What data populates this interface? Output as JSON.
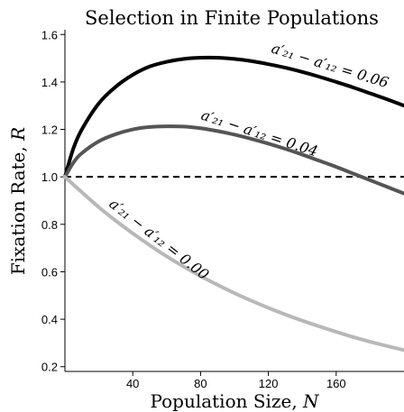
{
  "chart_data": {
    "type": "line",
    "title": "Selection in Finite Populations",
    "xlabel": "Population Size, N",
    "ylabel": "Fixation Rate, R",
    "xlim": [
      0,
      200
    ],
    "ylim": [
      0.18,
      1.62
    ],
    "xticks": [
      40,
      80,
      120,
      160
    ],
    "yticks": [
      0.2,
      0.4,
      0.6,
      0.8,
      1.0,
      1.2,
      1.4,
      1.6
    ],
    "ytick_labels": [
      "0.2",
      "0.4",
      "0.6",
      "0.8",
      "1.0",
      "1.2",
      "1.4",
      "1.6"
    ],
    "grid": false,
    "reference_line": {
      "y": 1.0,
      "style": "dashed"
    },
    "series": [
      {
        "annotation": "a′₂₁ − a′₁₂ = 0.06",
        "color": "#000000",
        "x": [
          0,
          5,
          10,
          20,
          30,
          40,
          50,
          60,
          70,
          80,
          90,
          100,
          110,
          120,
          130,
          140,
          150,
          160,
          170,
          180,
          190,
          200
        ],
        "y": [
          1.0,
          1.12,
          1.2,
          1.31,
          1.38,
          1.43,
          1.465,
          1.485,
          1.497,
          1.502,
          1.502,
          1.497,
          1.488,
          1.475,
          1.46,
          1.442,
          1.422,
          1.4,
          1.377,
          1.352,
          1.327,
          1.3
        ]
      },
      {
        "annotation": "a′₂₁ − a′₁₂ = 0.04",
        "color": "#555555",
        "x": [
          0,
          5,
          10,
          20,
          30,
          40,
          50,
          60,
          70,
          80,
          90,
          100,
          110,
          120,
          130,
          140,
          150,
          160,
          170,
          180,
          190,
          200
        ],
        "y": [
          1.0,
          1.06,
          1.1,
          1.15,
          1.18,
          1.2,
          1.21,
          1.213,
          1.212,
          1.205,
          1.193,
          1.178,
          1.16,
          1.14,
          1.118,
          1.094,
          1.068,
          1.042,
          1.014,
          0.986,
          0.958,
          0.93
        ]
      },
      {
        "annotation": "a′₂₁ − a′₁₂ = 0.00",
        "color": "#b8b8b8",
        "x": [
          0,
          10,
          20,
          30,
          40,
          50,
          60,
          70,
          80,
          90,
          100,
          110,
          120,
          130,
          140,
          150,
          160,
          170,
          180,
          190,
          200
        ],
        "y": [
          1.0,
          0.935,
          0.872,
          0.815,
          0.762,
          0.712,
          0.665,
          0.622,
          0.582,
          0.545,
          0.51,
          0.478,
          0.448,
          0.42,
          0.394,
          0.37,
          0.347,
          0.325,
          0.305,
          0.287,
          0.27
        ]
      }
    ]
  }
}
